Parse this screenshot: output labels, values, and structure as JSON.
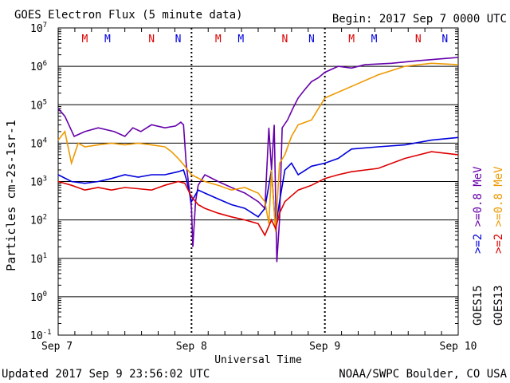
{
  "header": {
    "title": "GOES Electron Flux (5 minute data)",
    "begin": "Begin: 2017 Sep 7 0000 UTC"
  },
  "footer": {
    "updated": "Updated 2017 Sep  9 23:56:02 UTC",
    "credit": "NOAA/SWPC Boulder, CO USA"
  },
  "chart_data": {
    "type": "line",
    "title": "GOES Electron Flux (5 minute data)",
    "xlabel": "Universal Time",
    "ylabel": "Particles cm-2s-1sr-1",
    "yscale": "log",
    "ylim": [
      0.1,
      10000000
    ],
    "xlim": [
      0,
      3
    ],
    "x_ticks": [
      "Sep 7",
      "Sep 8",
      "Sep 9",
      "Sep 10"
    ],
    "y_ticks": [
      {
        "base": "10",
        "exp": "-1"
      },
      {
        "base": "10",
        "exp": "0"
      },
      {
        "base": "10",
        "exp": "1"
      },
      {
        "base": "10",
        "exp": "2"
      },
      {
        "base": "10",
        "exp": "3"
      },
      {
        "base": "10",
        "exp": "4"
      },
      {
        "base": "10",
        "exp": "5"
      },
      {
        "base": "10",
        "exp": "6"
      },
      {
        "base": "10",
        "exp": "7"
      }
    ],
    "horizontal_gridlines": [
      1,
      10,
      100,
      1000,
      10000,
      100000,
      1000000
    ],
    "dashed_threshold": 1000,
    "legend_placement": "right",
    "legend": {
      "goes15": {
        "label": "GOES15",
        "lines": [
          {
            "text": ">=2",
            "color": "#0000dd"
          },
          {
            "text": ">=0.8  MeV",
            "color": "#6600aa"
          }
        ]
      },
      "goes13": {
        "label": "GOES13",
        "lines": [
          {
            "text": ">=2",
            "color": "#dd0000"
          },
          {
            "text": ">=0.8  MeV",
            "color": "#ee9900"
          }
        ]
      }
    },
    "markers": [
      {
        "text": "M",
        "x": 0.2,
        "color": "#dd0000"
      },
      {
        "text": "M",
        "x": 0.37,
        "color": "#0000dd"
      },
      {
        "text": "N",
        "x": 0.7,
        "color": "#dd0000"
      },
      {
        "text": "N",
        "x": 0.9,
        "color": "#0000dd"
      },
      {
        "text": "M",
        "x": 1.2,
        "color": "#dd0000"
      },
      {
        "text": "M",
        "x": 1.37,
        "color": "#0000dd"
      },
      {
        "text": "N",
        "x": 1.7,
        "color": "#dd0000"
      },
      {
        "text": "N",
        "x": 1.9,
        "color": "#0000dd"
      },
      {
        "text": "M",
        "x": 2.2,
        "color": "#dd0000"
      },
      {
        "text": "M",
        "x": 2.37,
        "color": "#0000dd"
      },
      {
        "text": "N",
        "x": 2.7,
        "color": "#dd0000"
      },
      {
        "text": "N",
        "x": 2.9,
        "color": "#0000dd"
      }
    ],
    "series": [
      {
        "name": "GOES15 >=0.8 MeV",
        "color": "#6600aa",
        "x": [
          0,
          0.05,
          0.12,
          0.2,
          0.3,
          0.42,
          0.5,
          0.56,
          0.62,
          0.7,
          0.8,
          0.88,
          0.92,
          0.94,
          0.96,
          1.0,
          1.01,
          1.03,
          1.05,
          1.1,
          1.2,
          1.3,
          1.4,
          1.5,
          1.55,
          1.58,
          1.6,
          1.62,
          1.64,
          1.66,
          1.68,
          1.72,
          1.76,
          1.8,
          1.85,
          1.9,
          1.95,
          2.0,
          2.1,
          2.2,
          2.3,
          2.5,
          2.7,
          2.9,
          3.0
        ],
        "y": [
          80000,
          50000,
          15000,
          20000,
          25000,
          20000,
          15000,
          25000,
          20000,
          30000,
          25000,
          28000,
          35000,
          30000,
          3000,
          200,
          20,
          300,
          800,
          1500,
          1000,
          700,
          500,
          300,
          200,
          25000,
          2000,
          30000,
          8,
          100,
          25000,
          40000,
          80000,
          150000,
          250000,
          400000,
          500000,
          700000,
          1000000,
          900000,
          1100000,
          1200000,
          1400000,
          1600000,
          1700000
        ]
      },
      {
        "name": "GOES15 >=2 MeV",
        "color": "#0000dd",
        "x": [
          0,
          0.1,
          0.2,
          0.3,
          0.4,
          0.5,
          0.6,
          0.7,
          0.8,
          0.9,
          0.94,
          0.96,
          1.0,
          1.05,
          1.1,
          1.2,
          1.3,
          1.4,
          1.5,
          1.55,
          1.6,
          1.63,
          1.66,
          1.7,
          1.75,
          1.8,
          1.9,
          2.0,
          2.1,
          2.2,
          2.4,
          2.6,
          2.8,
          3.0
        ],
        "y": [
          1500,
          1000,
          900,
          1000,
          1200,
          1500,
          1300,
          1500,
          1500,
          1800,
          2000,
          1200,
          300,
          600,
          500,
          350,
          250,
          200,
          120,
          200,
          2000,
          60,
          300,
          2000,
          3000,
          1500,
          2500,
          3000,
          4000,
          7000,
          8000,
          9000,
          12000,
          14000
        ]
      },
      {
        "name": "GOES13 >=0.8 MeV",
        "color": "#ee9900",
        "x": [
          0,
          0.05,
          0.1,
          0.15,
          0.2,
          0.3,
          0.4,
          0.5,
          0.6,
          0.7,
          0.8,
          0.85,
          0.9,
          0.95,
          1.0,
          1.1,
          1.2,
          1.3,
          1.4,
          1.5,
          1.55,
          1.58,
          1.6,
          1.63,
          1.66,
          1.7,
          1.75,
          1.8,
          1.9,
          2.0,
          2.2,
          2.4,
          2.6,
          2.8,
          3.0
        ],
        "y": [
          12000,
          20000,
          3000,
          10000,
          8000,
          9000,
          10000,
          9000,
          10000,
          9000,
          8000,
          6000,
          4000,
          2500,
          1500,
          1000,
          800,
          600,
          700,
          500,
          300,
          80,
          2000,
          50,
          3000,
          5000,
          15000,
          30000,
          40000,
          150000,
          300000,
          600000,
          1000000,
          1200000,
          1100000
        ]
      },
      {
        "name": "GOES13 >=2 MeV",
        "color": "#dd0000",
        "x": [
          0,
          0.1,
          0.2,
          0.3,
          0.4,
          0.5,
          0.6,
          0.7,
          0.8,
          0.9,
          0.95,
          1.0,
          1.05,
          1.1,
          1.2,
          1.3,
          1.4,
          1.5,
          1.55,
          1.6,
          1.63,
          1.66,
          1.7,
          1.8,
          1.9,
          2.0,
          2.1,
          2.2,
          2.4,
          2.6,
          2.8,
          3.0
        ],
        "y": [
          1000,
          800,
          600,
          700,
          600,
          700,
          650,
          600,
          800,
          1000,
          900,
          400,
          250,
          200,
          150,
          120,
          100,
          80,
          40,
          100,
          60,
          150,
          300,
          600,
          800,
          1200,
          1500,
          1800,
          2200,
          4000,
          6000,
          5000
        ]
      }
    ]
  }
}
